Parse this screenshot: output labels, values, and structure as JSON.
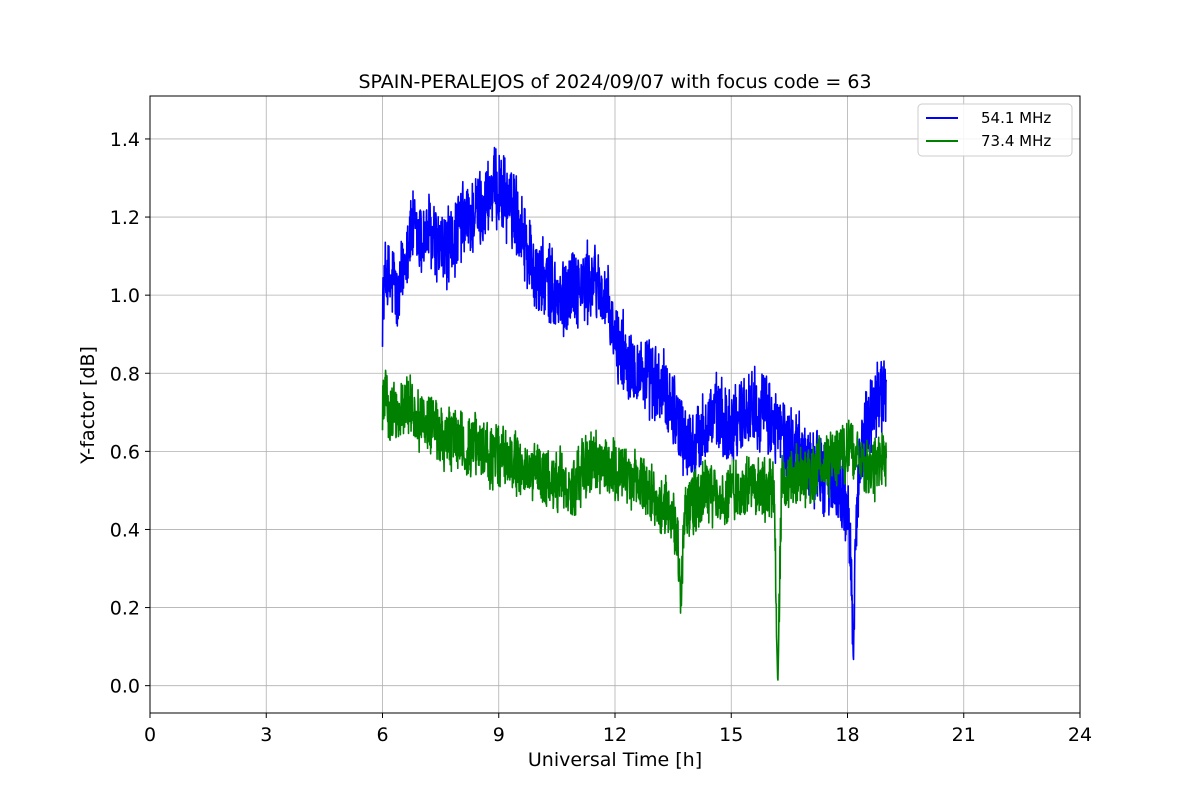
{
  "chart_data": {
    "type": "line",
    "title": "SPAIN-PERALEJOS of 2024/09/07 with focus code = 63",
    "xlabel": "Universal Time [h]",
    "ylabel": "Y-factor [dB]",
    "xlim": [
      0,
      24
    ],
    "ylim": [
      -0.07,
      1.51
    ],
    "xticks": [
      0,
      3,
      6,
      9,
      12,
      15,
      18,
      21,
      24
    ],
    "yticks": [
      0.0,
      0.2,
      0.4,
      0.6,
      0.8,
      1.0,
      1.2,
      1.4
    ],
    "grid": true,
    "legend_position": "top-right",
    "series": [
      {
        "name": "54.1 MHz",
        "color": "#0000ff",
        "x": [
          6.0,
          6.1,
          6.2,
          6.3,
          6.4,
          6.5,
          6.6,
          6.8,
          7.0,
          7.2,
          7.5,
          7.8,
          8.0,
          8.3,
          8.6,
          8.8,
          9.0,
          9.2,
          9.4,
          9.6,
          9.8,
          10.0,
          10.3,
          10.6,
          10.9,
          11.2,
          11.5,
          11.8,
          12.0,
          12.3,
          12.6,
          12.9,
          13.2,
          13.5,
          13.8,
          14.0,
          14.3,
          14.6,
          14.9,
          15.2,
          15.5,
          15.8,
          16.1,
          16.4,
          16.7,
          17.0,
          17.3,
          17.6,
          17.9,
          18.0,
          18.1,
          18.15,
          18.2,
          18.3,
          18.5,
          18.7,
          18.9,
          19.0
        ],
        "y": [
          0.98,
          1.06,
          1.02,
          1.04,
          0.97,
          1.05,
          1.12,
          1.17,
          1.14,
          1.16,
          1.11,
          1.13,
          1.18,
          1.2,
          1.23,
          1.26,
          1.27,
          1.24,
          1.22,
          1.17,
          1.1,
          1.04,
          1.03,
          0.98,
          1.03,
          1.02,
          1.04,
          0.97,
          0.88,
          0.84,
          0.81,
          0.78,
          0.76,
          0.72,
          0.63,
          0.6,
          0.66,
          0.7,
          0.66,
          0.69,
          0.72,
          0.7,
          0.67,
          0.63,
          0.6,
          0.57,
          0.55,
          0.52,
          0.5,
          0.45,
          0.3,
          0.05,
          0.35,
          0.58,
          0.66,
          0.72,
          0.76,
          0.74
        ]
      },
      {
        "name": "73.4 MHz",
        "color": "#008000",
        "x": [
          6.0,
          6.1,
          6.2,
          6.3,
          6.4,
          6.5,
          6.6,
          6.8,
          7.0,
          7.3,
          7.6,
          7.9,
          8.2,
          8.5,
          8.8,
          9.1,
          9.4,
          9.7,
          10.0,
          10.3,
          10.6,
          10.9,
          11.2,
          11.5,
          11.8,
          12.1,
          12.4,
          12.7,
          13.0,
          13.3,
          13.6,
          13.7,
          13.8,
          14.0,
          14.3,
          14.6,
          14.9,
          15.2,
          15.5,
          15.8,
          16.1,
          16.2,
          16.3,
          16.6,
          16.9,
          17.2,
          17.5,
          17.8,
          18.0,
          18.1,
          18.3,
          18.6,
          18.9,
          19.0
        ],
        "y": [
          0.72,
          0.75,
          0.69,
          0.73,
          0.68,
          0.7,
          0.73,
          0.7,
          0.68,
          0.66,
          0.62,
          0.64,
          0.6,
          0.62,
          0.58,
          0.6,
          0.57,
          0.55,
          0.54,
          0.52,
          0.53,
          0.5,
          0.56,
          0.57,
          0.56,
          0.55,
          0.54,
          0.52,
          0.49,
          0.46,
          0.4,
          0.22,
          0.45,
          0.47,
          0.5,
          0.48,
          0.49,
          0.5,
          0.52,
          0.5,
          0.5,
          0.0,
          0.52,
          0.53,
          0.54,
          0.55,
          0.56,
          0.58,
          0.6,
          0.62,
          0.57,
          0.55,
          0.58,
          0.56
        ]
      }
    ]
  }
}
